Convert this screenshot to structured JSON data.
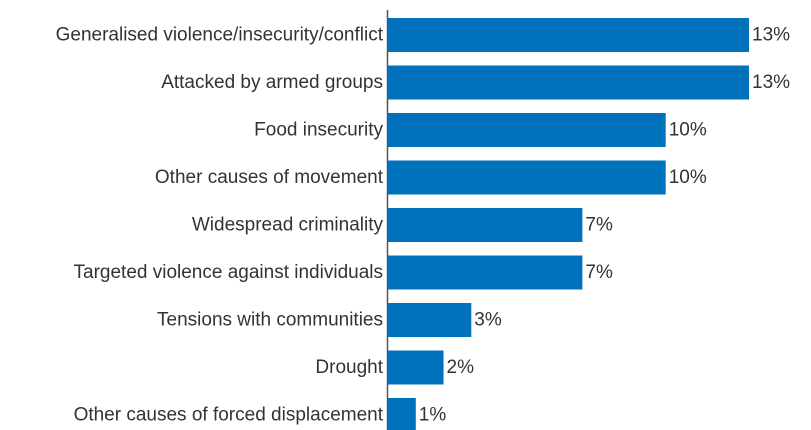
{
  "chart_data": {
    "type": "bar",
    "orientation": "horizontal",
    "categories": [
      "Generalised violence/insecurity/conflict",
      "Attacked by armed groups",
      "Food insecurity",
      "Other causes of movement",
      "Widespread criminality",
      "Targeted violence against individuals",
      "Tensions with communities",
      "Drought",
      "Other causes of forced displacement"
    ],
    "values": [
      13,
      13,
      10,
      10,
      7,
      7,
      3,
      2,
      1
    ],
    "value_labels": [
      "13%",
      "13%",
      "10%",
      "10%",
      "7%",
      "7%",
      "3%",
      "2%",
      "1%"
    ],
    "unit": "%",
    "title": "",
    "xlabel": "",
    "ylabel": "",
    "xlim": [
      0,
      13
    ],
    "grid": false,
    "legend": "none",
    "bar_color": "#0072BC"
  }
}
